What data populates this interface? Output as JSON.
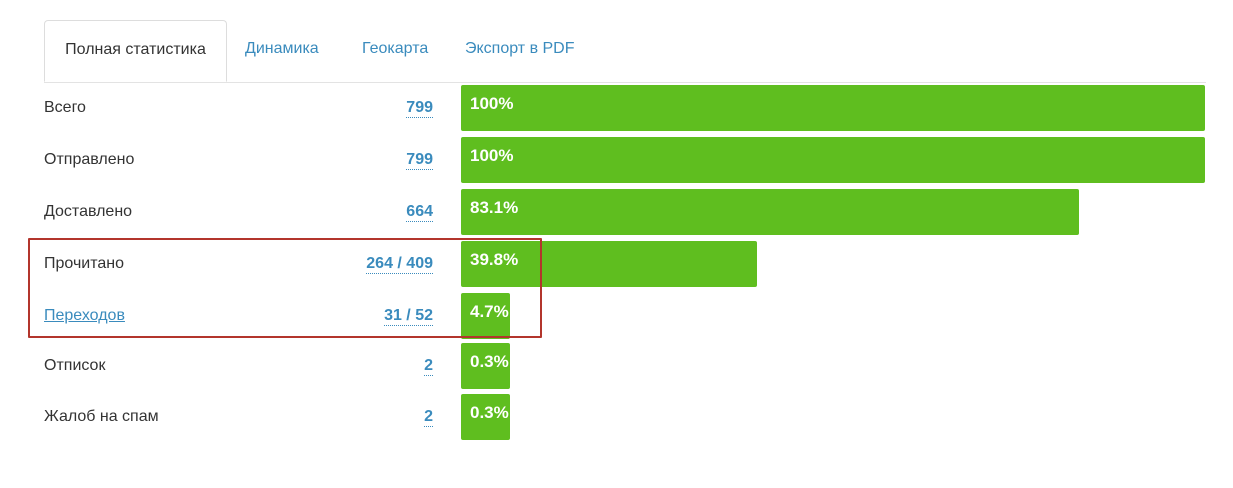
{
  "tabs": [
    {
      "label": "Полная статистика",
      "active": true
    },
    {
      "label": "Динамика",
      "active": false
    },
    {
      "label": "Геокарта",
      "active": false
    },
    {
      "label": "Экспорт в PDF",
      "active": false
    }
  ],
  "stats": [
    {
      "label": "Всего",
      "value": "799",
      "percent_label": "100%",
      "percent": 100
    },
    {
      "label": "Отправлено",
      "value": "799",
      "percent_label": "100%",
      "percent": 100
    },
    {
      "label": "Доставлено",
      "value": "664",
      "percent_label": "83.1%",
      "percent": 83.1
    },
    {
      "label": "Прочитано",
      "value": "264 / 409",
      "percent_label": "39.8%",
      "percent": 39.8
    },
    {
      "label": "Переходов",
      "value": "31 / 52",
      "percent_label": "4.7%",
      "percent": 4.7
    },
    {
      "label": "Отписок",
      "value": "2",
      "percent_label": "0.3%",
      "percent": 0.3
    },
    {
      "label": "Жалоб на спам",
      "value": "2",
      "percent_label": "0.3%",
      "percent": 0.3
    }
  ],
  "colors": {
    "bar": "#5fbe1f",
    "link": "#3a8bbd",
    "highlight_border": "#b3352c"
  }
}
